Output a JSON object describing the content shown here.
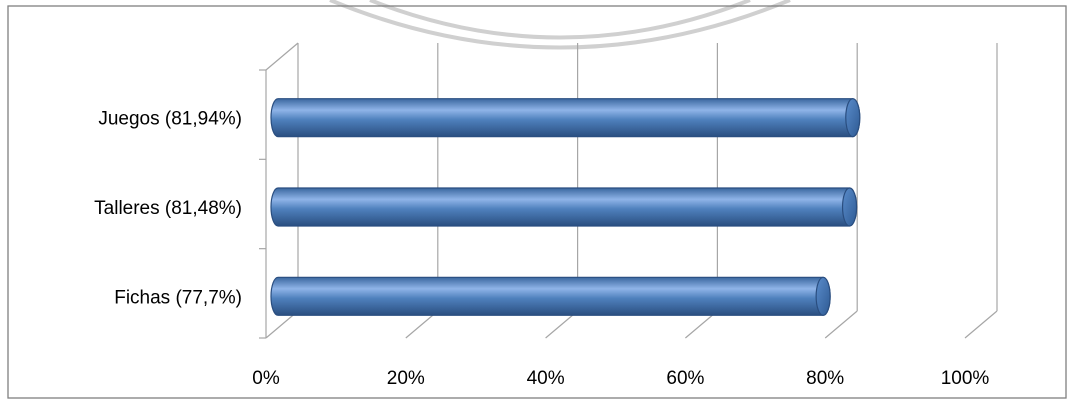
{
  "chart_data": {
    "type": "bar",
    "orientation": "horizontal",
    "style": "3d-cylinder",
    "categories": [
      "Juegos (81,94%)",
      "Talleres (81,48%)",
      "Fichas (77,7%)"
    ],
    "values": [
      81.94,
      81.48,
      77.7
    ],
    "x_ticks": [
      "0%",
      "20%",
      "40%",
      "60%",
      "80%",
      "100%"
    ],
    "xlim": [
      0,
      100
    ],
    "grid": true,
    "legend": "none",
    "colors": {
      "bar": "#4f81bd",
      "bar_light": "#8fb4e8",
      "bar_dark": "#2a4e80",
      "grid": "#a6a6a6",
      "frame": "#808080",
      "watermark": "#c8c8c8"
    }
  }
}
